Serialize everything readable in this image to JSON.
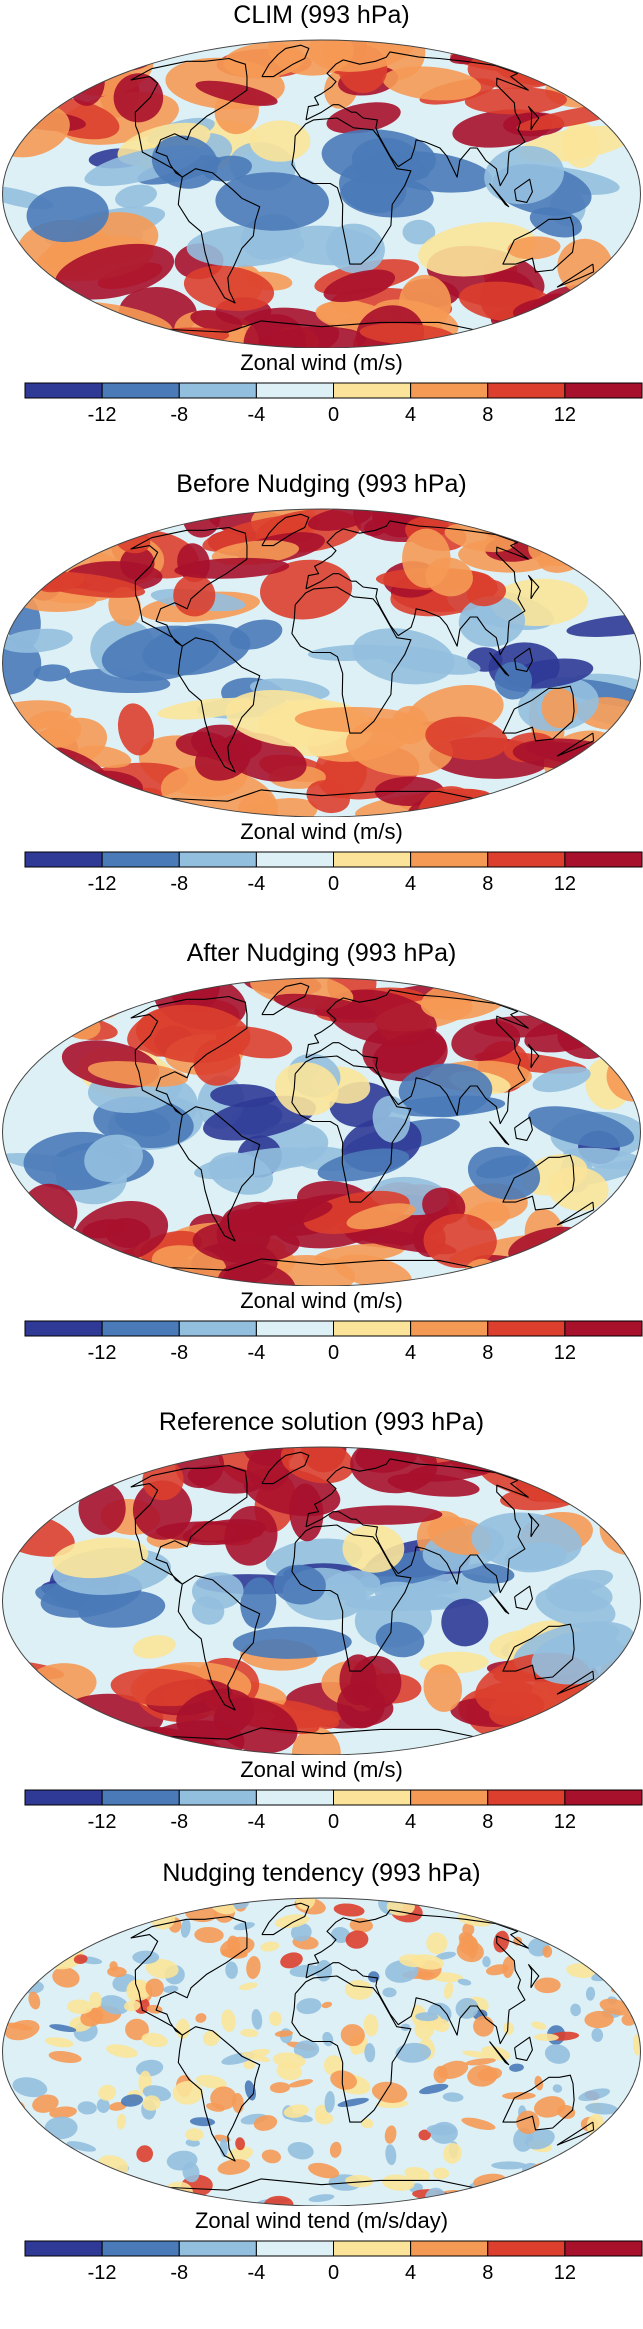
{
  "chart_data": [
    {
      "type": "heatmap",
      "title": "CLIM (993 hPa)",
      "colorbar_label": "Zonal wind (m/s)",
      "colorbar_levels": [
        -16,
        -12,
        -8,
        -4,
        0,
        4,
        8,
        12,
        16
      ],
      "colorbar_ticks": [
        "-12",
        "-8",
        "-4",
        "0",
        "4",
        "8",
        "12"
      ],
      "colors": [
        "#2f3a96",
        "#4a7ab8",
        "#93bfdf",
        "#dcf0f6",
        "#fbe49a",
        "#f59a55",
        "#dc3f2e",
        "#a8112c"
      ]
    },
    {
      "type": "heatmap",
      "title": "Before Nudging (993 hPa)",
      "colorbar_label": "Zonal wind (m/s)",
      "colorbar_levels": [
        -16,
        -12,
        -8,
        -4,
        0,
        4,
        8,
        12,
        16
      ],
      "colorbar_ticks": [
        "-12",
        "-8",
        "-4",
        "0",
        "4",
        "8",
        "12"
      ],
      "colors": [
        "#2f3a96",
        "#4a7ab8",
        "#93bfdf",
        "#dcf0f6",
        "#fbe49a",
        "#f59a55",
        "#dc3f2e",
        "#a8112c"
      ]
    },
    {
      "type": "heatmap",
      "title": "After Nudging (993 hPa)",
      "colorbar_label": "Zonal wind (m/s)",
      "colorbar_levels": [
        -16,
        -12,
        -8,
        -4,
        0,
        4,
        8,
        12,
        16
      ],
      "colorbar_ticks": [
        "-12",
        "-8",
        "-4",
        "0",
        "4",
        "8",
        "12"
      ],
      "colors": [
        "#2f3a96",
        "#4a7ab8",
        "#93bfdf",
        "#dcf0f6",
        "#fbe49a",
        "#f59a55",
        "#dc3f2e",
        "#a8112c"
      ]
    },
    {
      "type": "heatmap",
      "title": "Reference solution (993 hPa)",
      "colorbar_label": "Zonal wind (m/s)",
      "colorbar_levels": [
        -16,
        -12,
        -8,
        -4,
        0,
        4,
        8,
        12,
        16
      ],
      "colorbar_ticks": [
        "-12",
        "-8",
        "-4",
        "0",
        "4",
        "8",
        "12"
      ],
      "colors": [
        "#2f3a96",
        "#4a7ab8",
        "#93bfdf",
        "#dcf0f6",
        "#fbe49a",
        "#f59a55",
        "#dc3f2e",
        "#a8112c"
      ]
    },
    {
      "type": "heatmap",
      "title": "Nudging tendency (993 hPa)",
      "colorbar_label": "Zonal wind tend (m/s/day)",
      "colorbar_levels": [
        -16,
        -12,
        -8,
        -4,
        0,
        4,
        8,
        12,
        16
      ],
      "colorbar_ticks": [
        "-12",
        "-8",
        "-4",
        "0",
        "4",
        "8",
        "12"
      ],
      "colors": [
        "#2f3a96",
        "#4a7ab8",
        "#93bfdf",
        "#dcf0f6",
        "#fbe49a",
        "#f59a55",
        "#dc3f2e",
        "#a8112c"
      ]
    }
  ]
}
